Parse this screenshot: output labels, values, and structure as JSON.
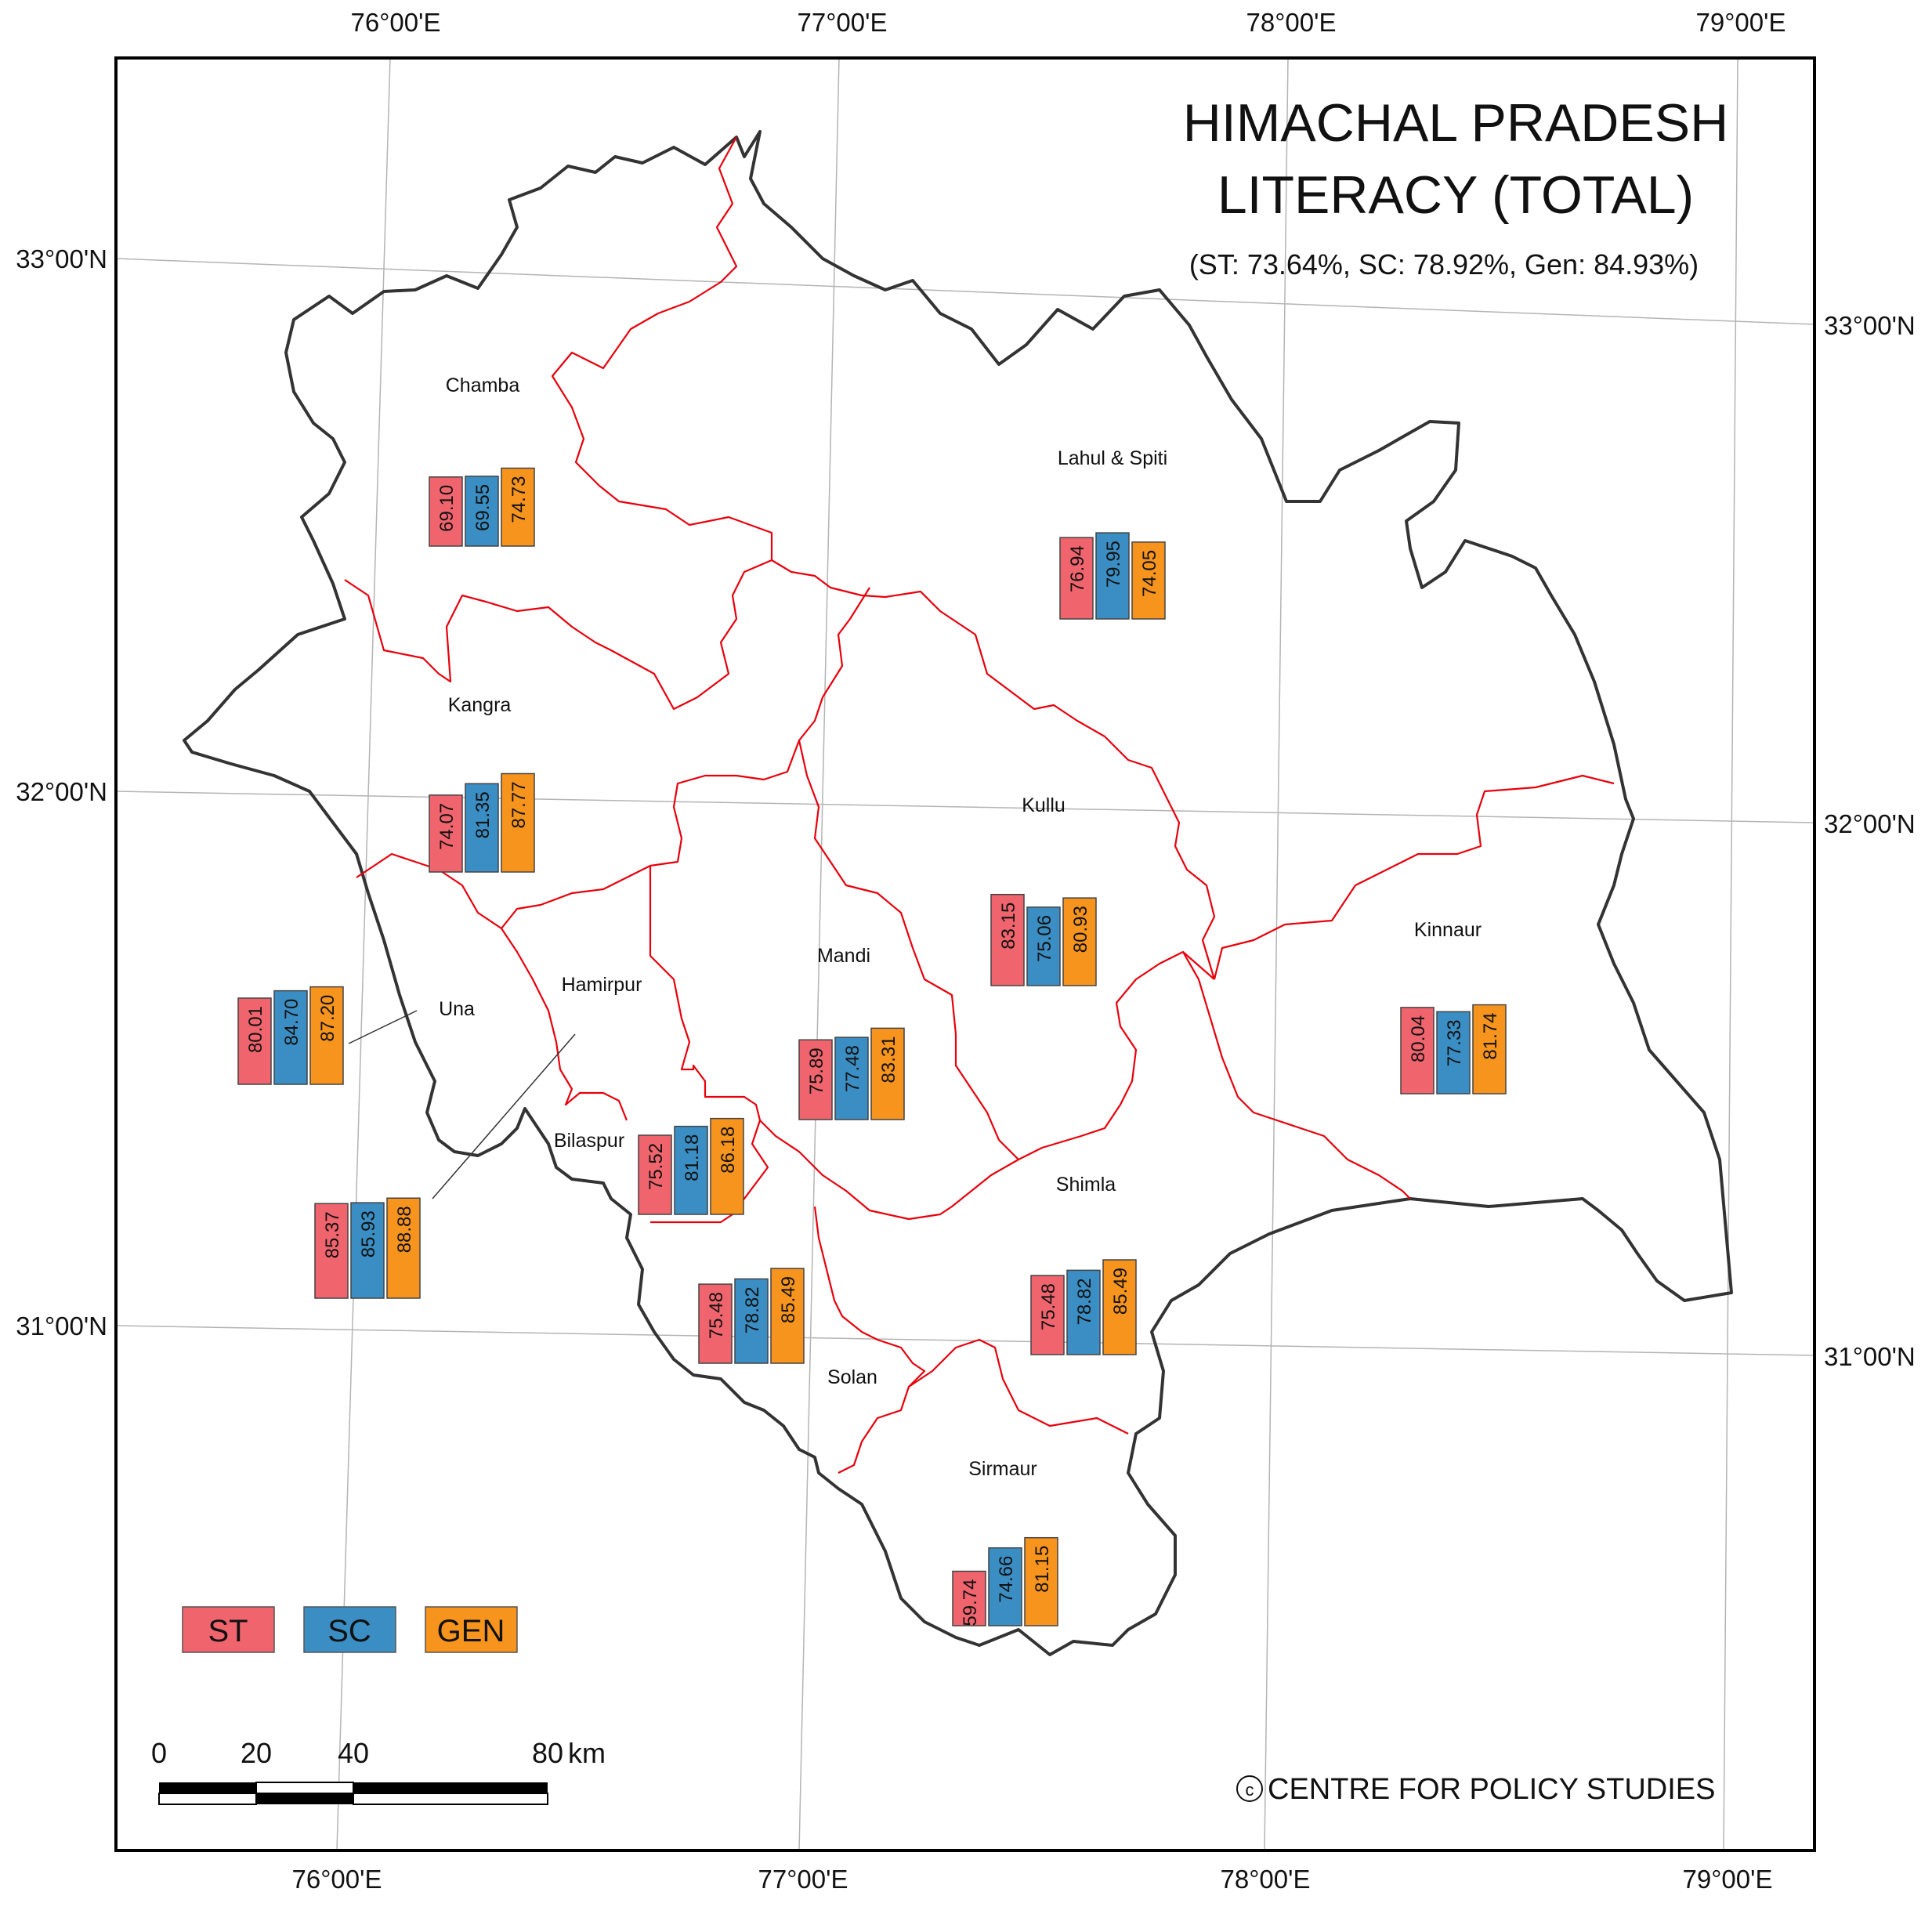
{
  "title": {
    "line1": "HIMACHAL PRADESH",
    "line2": "LITERACY (TOTAL)",
    "subtitle": "(ST: 73.64%, SC: 78.92%, Gen: 84.93%)"
  },
  "graticule": {
    "top_lon": [
      "76°00'E",
      "77°00'E",
      "78°00'E",
      "79°00'E"
    ],
    "bottom_lon": [
      "76°00'E",
      "77°00'E",
      "78°00'E",
      "79°00'E"
    ],
    "left_lat": [
      "33°00'N",
      "32°00'N",
      "31°00'N"
    ],
    "right_lat": [
      "33°00'N",
      "32°00'N",
      "31°00'N"
    ]
  },
  "colors": {
    "st": "#f0646e",
    "sc": "#3a8ec3",
    "gen": "#f7941d",
    "state_border": "#333333",
    "district_border": "#e8000b",
    "graticule": "#b4b4b4"
  },
  "legend": {
    "st": "ST",
    "sc": "SC",
    "gen": "GEN"
  },
  "scale_bar": {
    "labels": [
      "0",
      "20",
      "40",
      "80"
    ],
    "unit": "km"
  },
  "credit": "CENTRE FOR POLICY STUDIES",
  "credit_symbol": "c",
  "chart_data": {
    "type": "bar",
    "categories": [
      "ST",
      "SC",
      "GEN"
    ],
    "districts": [
      {
        "name": "Chamba",
        "st": "69.10",
        "sc": "69.55",
        "gen": "74.73"
      },
      {
        "name": "Lahul & Spiti",
        "st": "76.94",
        "sc": "79.95",
        "gen": "74.05"
      },
      {
        "name": "Kangra",
        "st": "74.07",
        "sc": "81.35",
        "gen": "87.77"
      },
      {
        "name": "Kullu",
        "st": "83.15",
        "sc": "75.06",
        "gen": "80.93"
      },
      {
        "name": "Kinnaur",
        "st": "80.04",
        "sc": "77.33",
        "gen": "81.74"
      },
      {
        "name": "Una",
        "st": "80.01",
        "sc": "84.70",
        "gen": "87.20"
      },
      {
        "name": "Hamirpur",
        "st": "85.37",
        "sc": "85.93",
        "gen": "88.88"
      },
      {
        "name": "Mandi",
        "st": "75.89",
        "sc": "77.48",
        "gen": "83.31"
      },
      {
        "name": "Bilaspur",
        "st": "75.52",
        "sc": "81.18",
        "gen": "86.18"
      },
      {
        "name": "Solan",
        "st": "75.48",
        "sc": "78.82",
        "gen": "85.49"
      },
      {
        "name": "Shimla",
        "st": "75.48",
        "sc": "78.82",
        "gen": "85.49"
      },
      {
        "name": "Sirmaur",
        "st": "59.74",
        "sc": "74.66",
        "gen": "81.15"
      }
    ]
  }
}
